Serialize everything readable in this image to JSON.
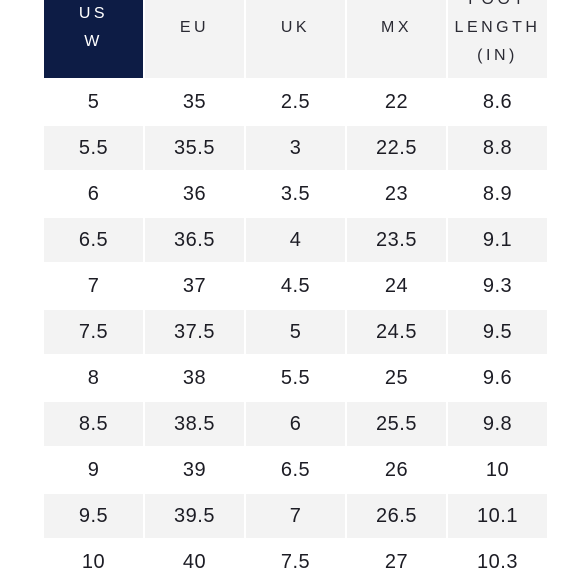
{
  "size_chart": {
    "columns": [
      {
        "label": "US\nW",
        "active": true
      },
      {
        "label": "EU",
        "active": false
      },
      {
        "label": "UK",
        "active": false
      },
      {
        "label": "MX",
        "active": false
      },
      {
        "label": "FOOT\nLENGTH\n(IN)",
        "active": false
      }
    ],
    "rows": [
      [
        "5",
        "35",
        "2.5",
        "22",
        "8.6"
      ],
      [
        "5.5",
        "35.5",
        "3",
        "22.5",
        "8.8"
      ],
      [
        "6",
        "36",
        "3.5",
        "23",
        "8.9"
      ],
      [
        "6.5",
        "36.5",
        "4",
        "23.5",
        "9.1"
      ],
      [
        "7",
        "37",
        "4.5",
        "24",
        "9.3"
      ],
      [
        "7.5",
        "37.5",
        "5",
        "24.5",
        "9.5"
      ],
      [
        "8",
        "38",
        "5.5",
        "25",
        "9.6"
      ],
      [
        "8.5",
        "38.5",
        "6",
        "25.5",
        "9.8"
      ],
      [
        "9",
        "39",
        "6.5",
        "26",
        "10"
      ],
      [
        "9.5",
        "39.5",
        "7",
        "26.5",
        "10.1"
      ],
      [
        "10",
        "40",
        "7.5",
        "27",
        "10.3"
      ]
    ]
  },
  "colors": {
    "header_active_bg": "#0d1c45",
    "header_bg": "#f3f3f3",
    "row_shaded_bg": "#f3f3f3",
    "text": "#1c1c24"
  }
}
